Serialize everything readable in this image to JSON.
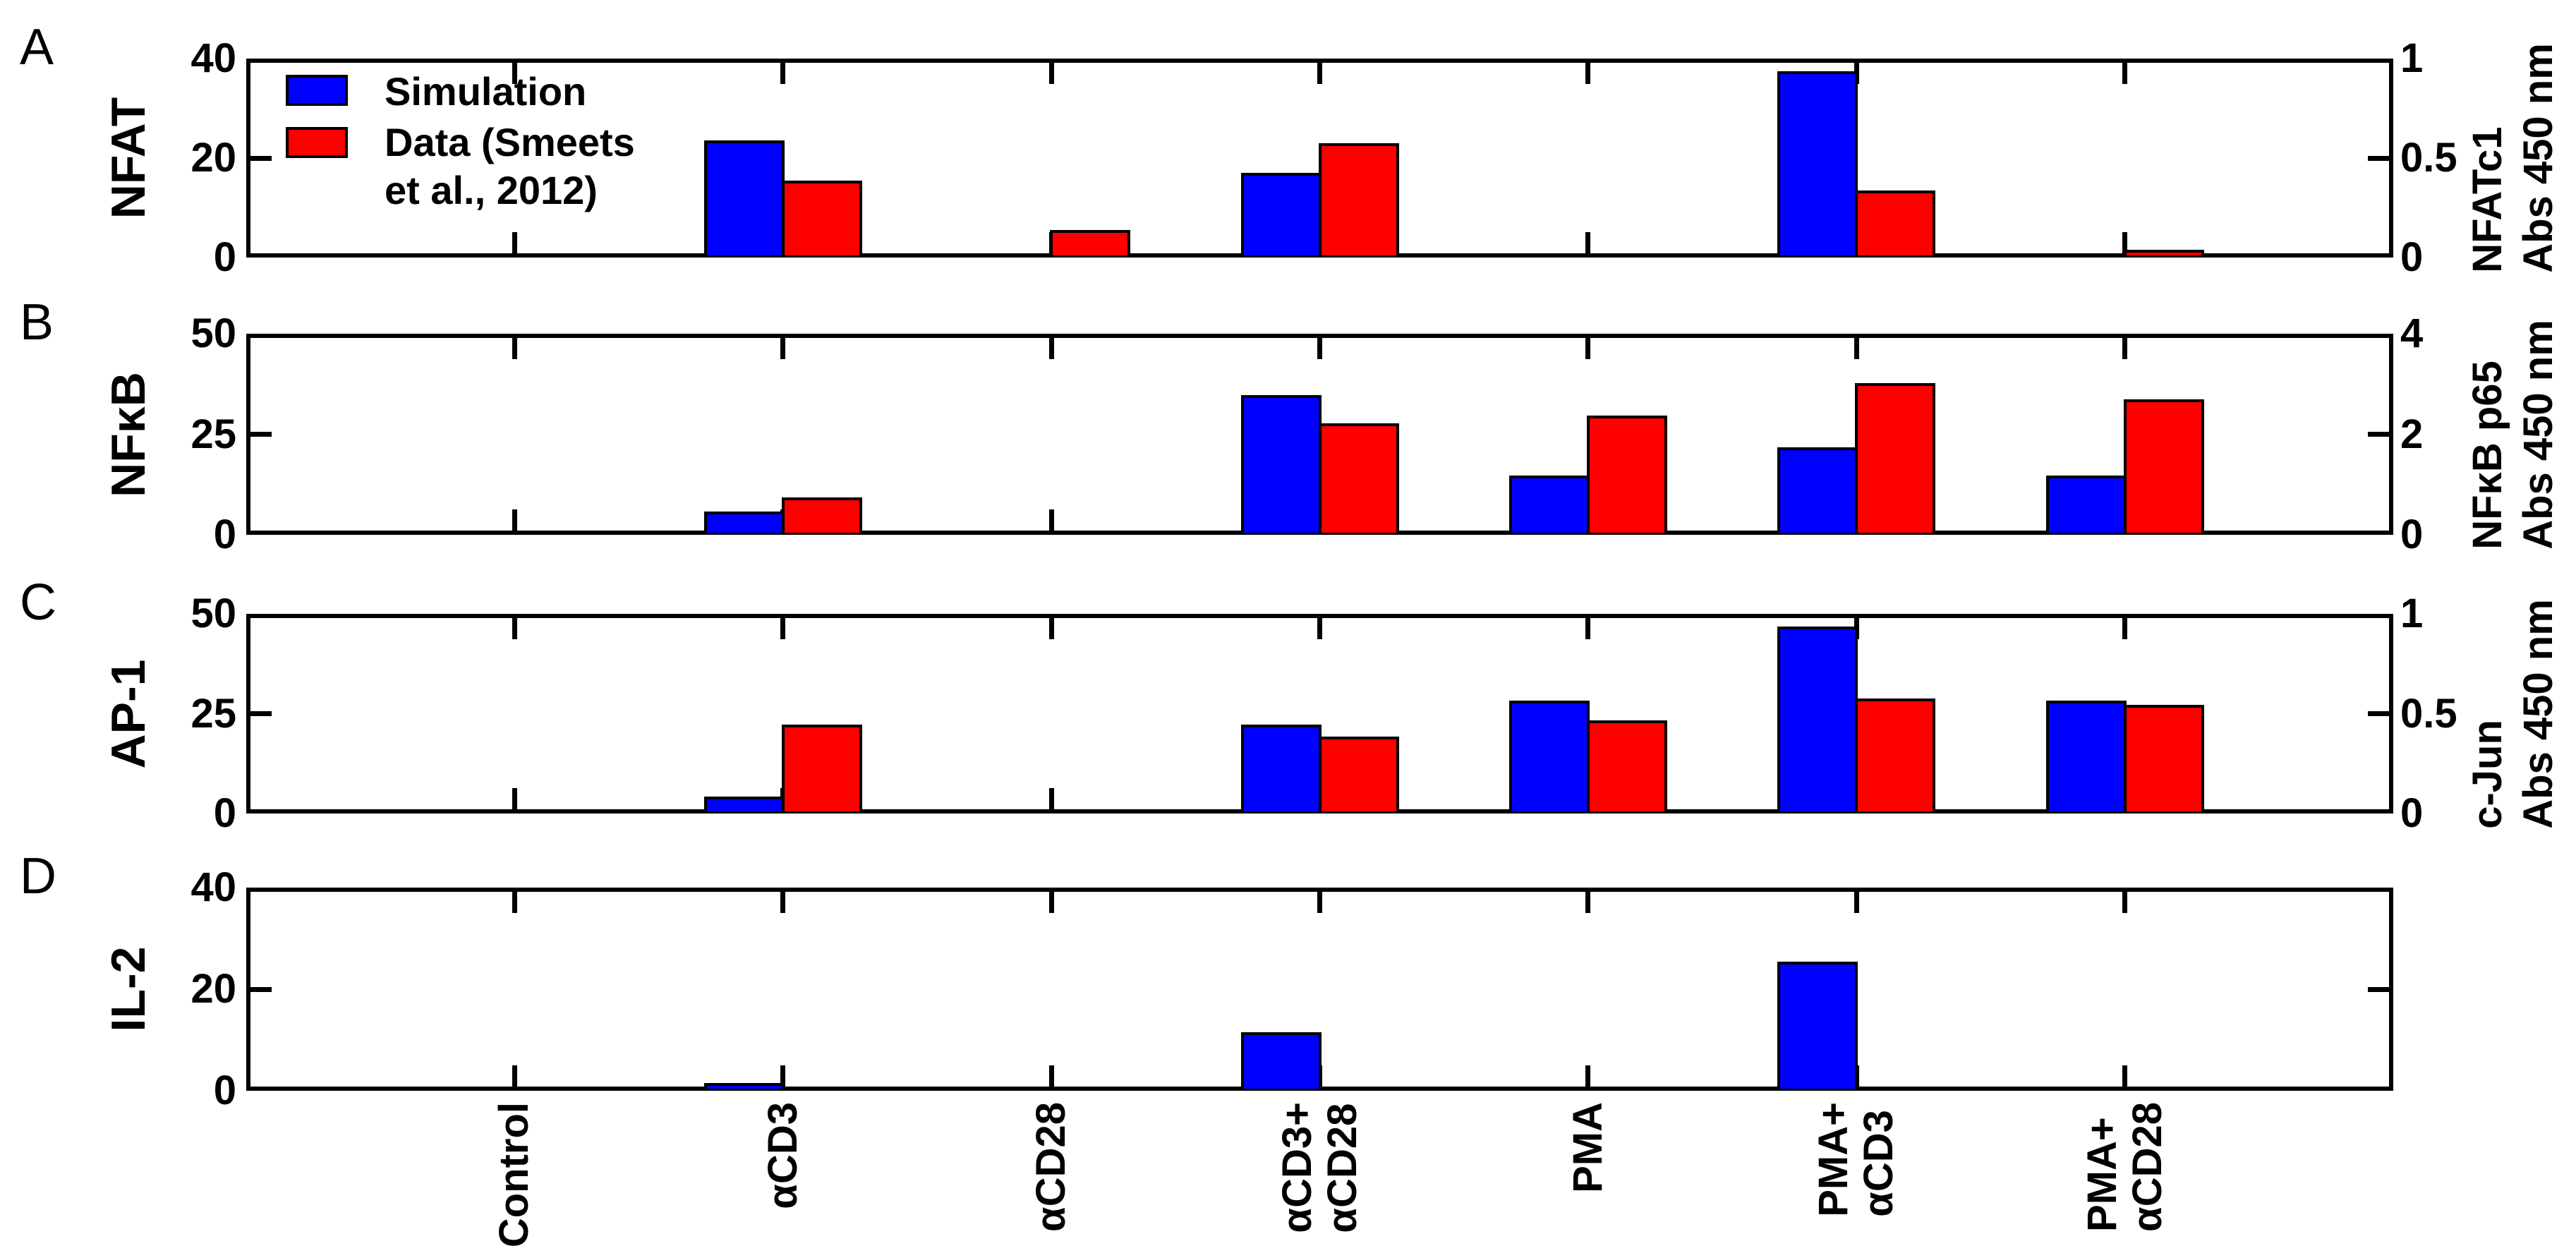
{
  "figure": {
    "background": "#FFFFFF",
    "axis_color": "#000000"
  },
  "legend": {
    "items": [
      {
        "name": "simulation",
        "color": "#0000FF",
        "label_lines": [
          "Simulation"
        ]
      },
      {
        "name": "data",
        "color": "#FF0000",
        "label_lines": [
          "Data (Smeets",
          "et al., 2012)"
        ]
      }
    ]
  },
  "chart_data": {
    "type": "bar",
    "categories_lines": [
      [
        "Control"
      ],
      [
        "αCD3"
      ],
      [
        "αCD28"
      ],
      [
        "αCD3+",
        "αCD28"
      ],
      [
        "PMA"
      ],
      [
        "PMA+",
        "αCD3"
      ],
      [
        "PMA+",
        "αCD28"
      ]
    ],
    "series_names": [
      "Simulation",
      "Data (Smeets et al., 2012)"
    ],
    "series_colors": {
      "sim": "#0000FF",
      "data": "#FF0000"
    },
    "legend_position": "top-left of panel A, no box",
    "grid": false,
    "panels": [
      {
        "letter": "A",
        "ylabel": "NFAT",
        "ylim": [
          0,
          40
        ],
        "yticks": [
          "0",
          "20",
          "40"
        ],
        "right_label_lines": [
          "NFATc1",
          "Abs 450 nm"
        ],
        "right_ticks": [
          "0",
          "0.5",
          "1"
        ],
        "sim": [
          0,
          22.5,
          0,
          16,
          0,
          36.5,
          0
        ],
        "data": [
          0,
          14.5,
          4.5,
          22,
          0,
          12.5,
          0.3
        ]
      },
      {
        "letter": "B",
        "ylabel": "NFκB",
        "ylim": [
          0,
          50
        ],
        "yticks": [
          "0",
          "25",
          "50"
        ],
        "right_label_lines": [
          "NFκB p65",
          "Abs 450 nm"
        ],
        "right_ticks": [
          "0",
          "2",
          "4"
        ],
        "sim": [
          0,
          4.5,
          0,
          33.5,
          13.5,
          20.5,
          13.5
        ],
        "data": [
          0,
          8,
          0,
          26.5,
          28.5,
          36.5,
          32.5
        ]
      },
      {
        "letter": "C",
        "ylabel": "AP-1",
        "ylim": [
          0,
          50
        ],
        "yticks": [
          "0",
          "25",
          "50"
        ],
        "right_label_lines": [
          "c-Jun",
          "Abs 450 nm"
        ],
        "right_ticks": [
          "0",
          "0.5",
          "1"
        ],
        "sim": [
          0,
          3,
          0,
          21,
          27,
          45.5,
          27
        ],
        "data": [
          0,
          21,
          0,
          18,
          22,
          27.5,
          26
        ]
      },
      {
        "letter": "D",
        "ylabel": "IL-2",
        "ylim": [
          0,
          40
        ],
        "yticks": [
          "0",
          "20",
          "40"
        ],
        "right_label_lines": [],
        "right_ticks": [],
        "sim": [
          0,
          0.5,
          0,
          10.5,
          0,
          24.5,
          0
        ],
        "data": [
          0,
          0,
          0,
          0,
          0,
          0,
          0
        ]
      }
    ]
  }
}
